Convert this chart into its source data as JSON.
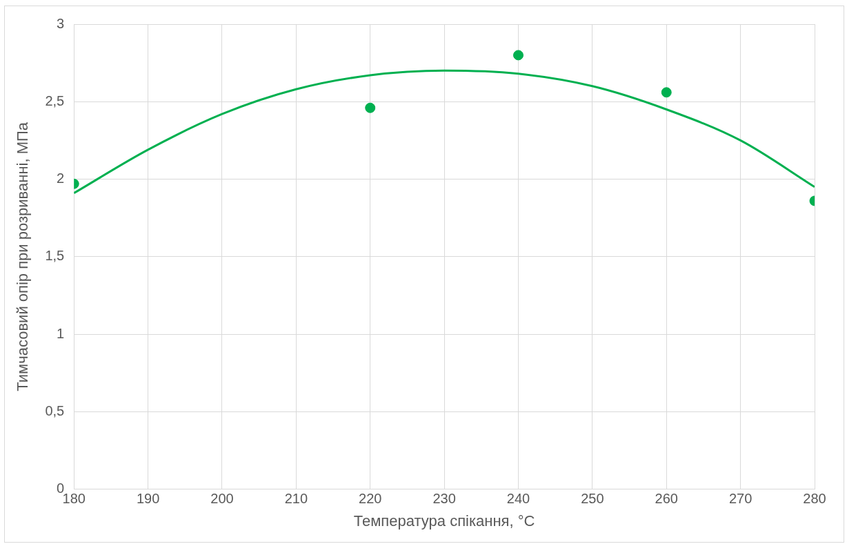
{
  "chart_data": {
    "type": "scatter",
    "xlabel": "Температура спікання, °C",
    "ylabel": "Тимчасовий опір при розриванні, МПа",
    "x": [
      180,
      220,
      240,
      260,
      280
    ],
    "series": [
      {
        "color": "#00b050",
        "marker": "circle",
        "values": [
          1.97,
          2.46,
          2.8,
          2.56,
          1.86
        ]
      },
      {
        "type": "line",
        "color": "#00b050",
        "marker": "none",
        "x": [
          180,
          190,
          200,
          210,
          220,
          230,
          240,
          250,
          260,
          270,
          280
        ],
        "values": [
          1.91,
          2.19,
          2.42,
          2.58,
          2.67,
          2.7,
          2.68,
          2.6,
          2.45,
          2.25,
          1.95
        ]
      }
    ],
    "xlim": [
      180,
      280
    ],
    "xticks": [
      180,
      190,
      200,
      210,
      220,
      230,
      240,
      250,
      260,
      270,
      280
    ],
    "ylim": [
      0,
      3
    ],
    "yticks": [
      0,
      {
        "value": 0.5,
        "label": "0,5"
      },
      1,
      {
        "value": 1.5,
        "label": "1,5"
      },
      2,
      {
        "value": 2.5,
        "label": "2,5"
      },
      3
    ],
    "grid": true,
    "legend": false
  }
}
